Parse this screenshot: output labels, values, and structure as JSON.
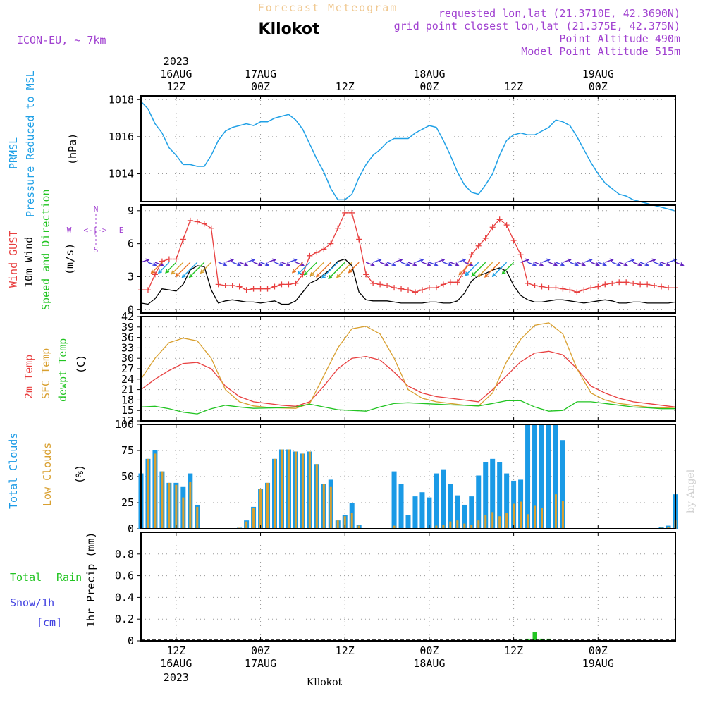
{
  "header": {
    "title": "Forecast Meteogram",
    "location": "Kllokot",
    "model": "ICON-EU, ~ 7km",
    "requested": "requested lon,lat (21.3710E, 42.3690N)",
    "gridpoint": "grid point closest lon,lat (21.375E, 42.375N)",
    "point_alt": "Point Altitude 490m",
    "model_alt": "Model Point Altitude 515m",
    "footer": "Kllokot",
    "watermark": "by Angel",
    "compass_n": "N",
    "compass_s": "S",
    "compass_w": "W",
    "compass_e": "E",
    "compass_arrow": "<-|->"
  },
  "time_axis": {
    "labels": [
      {
        "hour": 12,
        "time": "12Z",
        "date": "16AUG",
        "year": "2023"
      },
      {
        "hour": 24,
        "time": "00Z",
        "date": "17AUG"
      },
      {
        "hour": 36,
        "time": "12Z"
      },
      {
        "hour": 48,
        "time": "00Z",
        "date": "18AUG"
      },
      {
        "hour": 60,
        "time": "12Z"
      },
      {
        "hour": 72,
        "time": "00Z",
        "date": "19AUG"
      }
    ],
    "range_hours": [
      7,
      83
    ]
  },
  "colors": {
    "pressure": "#1fa0e6",
    "gust": "#e84040",
    "wind": "#000000",
    "temp2m": "#e84040",
    "sfc": "#d9a030",
    "dewpt": "#22c422",
    "total_cloud": "#1a9ae6",
    "low_cloud": "#d9a030",
    "rain": "#22c422",
    "snow": "#4040e0",
    "purple": "#a040d0"
  },
  "chart_data": [
    {
      "type": "line",
      "panel": "pressure",
      "labels": [
        "PRMSL",
        "Pressure Reduced to MSL",
        "(hPa)"
      ],
      "ylim": [
        1012.5,
        1018.2
      ],
      "yticks": [
        1014,
        1016,
        1018
      ],
      "series": [
        {
          "name": "PRMSL",
          "x": [
            7,
            8,
            9,
            10,
            11,
            12,
            13,
            14,
            15,
            16,
            17,
            18,
            19,
            20,
            21,
            22,
            23,
            24,
            25,
            26,
            27,
            28,
            29,
            30,
            31,
            32,
            33,
            34,
            35,
            36,
            37,
            38,
            39,
            40,
            41,
            42,
            43,
            44,
            45,
            46,
            47,
            48,
            49,
            50,
            51,
            52,
            53,
            54,
            55,
            56,
            57,
            58,
            59,
            60,
            61,
            62,
            63,
            64,
            65,
            66,
            67,
            68,
            69,
            70,
            71,
            72,
            73,
            74,
            75,
            76,
            77,
            78,
            79,
            80,
            81,
            82,
            83
          ],
          "values": [
            1017.9,
            1017.5,
            1016.7,
            1016.2,
            1015.4,
            1015.0,
            1014.5,
            1014.5,
            1014.4,
            1014.4,
            1015.0,
            1015.8,
            1016.3,
            1016.5,
            1016.6,
            1016.7,
            1016.6,
            1016.8,
            1016.8,
            1017.0,
            1017.1,
            1017.2,
            1016.9,
            1016.4,
            1015.6,
            1014.8,
            1014.1,
            1013.2,
            1012.6,
            1012.6,
            1012.9,
            1013.8,
            1014.5,
            1015.0,
            1015.3,
            1015.7,
            1015.9,
            1015.9,
            1015.9,
            1016.2,
            1016.4,
            1016.6,
            1016.5,
            1015.8,
            1015.0,
            1014.1,
            1013.4,
            1013.0,
            1012.9,
            1013.4,
            1014.0,
            1015.0,
            1015.8,
            1016.1,
            1016.2,
            1016.1,
            1016.1,
            1016.3,
            1016.5,
            1016.9,
            1016.8,
            1016.6,
            1016.0,
            1015.3,
            1014.6,
            1014.0,
            1013.5,
            1013.2,
            1012.9,
            1012.8,
            1012.6,
            1012.5,
            1012.4,
            1012.3,
            1012.2,
            1012.1,
            1012.0
          ]
        }
      ]
    },
    {
      "type": "line",
      "panel": "wind",
      "labels": [
        "Wind GUST",
        "10m Wind",
        "Speed and Direction",
        "(m/s)"
      ],
      "ylim": [
        -0.3,
        9.5
      ],
      "yticks": [
        0,
        3,
        6,
        9
      ],
      "x": [
        7,
        8,
        9,
        10,
        11,
        12,
        13,
        14,
        15,
        16,
        17,
        18,
        19,
        20,
        21,
        22,
        23,
        24,
        25,
        26,
        27,
        28,
        29,
        30,
        31,
        32,
        33,
        34,
        35,
        36,
        37,
        38,
        39,
        40,
        41,
        42,
        43,
        44,
        45,
        46,
        47,
        48,
        49,
        50,
        51,
        52,
        53,
        54,
        55,
        56,
        57,
        58,
        59,
        60,
        61,
        62,
        63,
        64,
        65,
        66,
        67,
        68,
        69,
        70,
        71,
        72,
        73,
        74,
        75,
        76,
        77,
        78,
        79,
        80,
        81,
        82,
        83
      ],
      "series": [
        {
          "name": "Wind GUST",
          "values": [
            1.8,
            1.8,
            3.2,
            4.4,
            4.6,
            4.6,
            6.4,
            8.1,
            8.0,
            7.8,
            7.4,
            2.3,
            2.2,
            2.2,
            2.1,
            1.8,
            1.9,
            1.9,
            1.9,
            2.1,
            2.3,
            2.3,
            2.4,
            3.2,
            4.9,
            5.2,
            5.5,
            6.0,
            7.4,
            8.8,
            8.8,
            6.4,
            3.2,
            2.4,
            2.3,
            2.2,
            2.0,
            1.9,
            1.8,
            1.6,
            1.8,
            2.0,
            2.0,
            2.3,
            2.5,
            2.5,
            3.5,
            5.0,
            5.8,
            6.5,
            7.5,
            8.2,
            7.7,
            6.3,
            5.0,
            2.4,
            2.2,
            2.1,
            2.0,
            2.0,
            1.9,
            1.8,
            1.6,
            1.8,
            2.0,
            2.1,
            2.3,
            2.4,
            2.5,
            2.5,
            2.4,
            2.3,
            2.3,
            2.2,
            2.1,
            2.0,
            2.0
          ]
        },
        {
          "name": "10m Wind",
          "values": [
            0.6,
            0.5,
            1.0,
            1.9,
            1.8,
            1.7,
            2.3,
            3.6,
            4.0,
            3.9,
            1.8,
            0.6,
            0.8,
            0.9,
            0.8,
            0.7,
            0.7,
            0.6,
            0.7,
            0.8,
            0.5,
            0.5,
            0.8,
            1.6,
            2.4,
            2.7,
            3.2,
            3.7,
            4.4,
            4.6,
            4.0,
            1.6,
            0.9,
            0.8,
            0.8,
            0.8,
            0.7,
            0.6,
            0.6,
            0.6,
            0.6,
            0.7,
            0.7,
            0.6,
            0.6,
            0.8,
            1.5,
            2.6,
            3.1,
            3.3,
            3.6,
            3.8,
            3.5,
            2.2,
            1.3,
            0.9,
            0.7,
            0.7,
            0.8,
            0.9,
            0.9,
            0.8,
            0.7,
            0.6,
            0.7,
            0.8,
            0.9,
            0.8,
            0.6,
            0.6,
            0.7,
            0.7,
            0.6,
            0.6,
            0.6,
            0.6,
            0.7
          ]
        }
      ]
    },
    {
      "type": "line",
      "panel": "temperature",
      "labels": [
        "2m Temp",
        "SFC Temp",
        "dewpt Temp",
        "(C)"
      ],
      "ylim": [
        12,
        42
      ],
      "yticks": [
        12,
        15,
        18,
        21,
        24,
        27,
        30,
        33,
        36,
        39,
        42
      ],
      "x": [
        7,
        9,
        11,
        13,
        15,
        17,
        19,
        21,
        23,
        25,
        27,
        29,
        31,
        33,
        35,
        37,
        39,
        41,
        43,
        45,
        47,
        49,
        51,
        53,
        55,
        57,
        59,
        61,
        63,
        65,
        67,
        69,
        71,
        73,
        75,
        77,
        79,
        81,
        83
      ],
      "series": [
        {
          "name": "2m Temp",
          "values": [
            21.0,
            24.0,
            26.5,
            28.5,
            28.8,
            27.0,
            22.0,
            19.0,
            17.5,
            17.0,
            16.5,
            16.2,
            17.5,
            22.0,
            27.0,
            30.0,
            30.5,
            29.5,
            26.0,
            22.0,
            20.0,
            19.0,
            18.5,
            18.0,
            17.5,
            21.0,
            25.0,
            29.0,
            31.5,
            32.0,
            31.0,
            27.0,
            22.0,
            20.0,
            18.5,
            17.5,
            17.0,
            16.5,
            16.0
          ]
        },
        {
          "name": "SFC Temp",
          "values": [
            24.0,
            30.0,
            34.5,
            35.8,
            35.0,
            30.0,
            21.0,
            17.5,
            16.3,
            15.9,
            15.7,
            15.6,
            17.0,
            25.0,
            33.0,
            38.5,
            39.2,
            37.0,
            30.0,
            21.0,
            18.5,
            17.5,
            17.0,
            16.5,
            16.3,
            20.0,
            29.0,
            35.5,
            39.5,
            40.2,
            37.0,
            27.0,
            20.0,
            18.0,
            17.0,
            16.5,
            16.0,
            15.8,
            15.6
          ]
        },
        {
          "name": "dewpt Temp",
          "values": [
            16.0,
            16.2,
            15.5,
            14.5,
            14.0,
            15.5,
            16.5,
            16.0,
            15.6,
            15.7,
            15.8,
            16.0,
            16.8,
            16.0,
            15.2,
            15.0,
            14.8,
            16.0,
            17.0,
            17.2,
            17.0,
            16.8,
            16.6,
            16.5,
            16.3,
            17.0,
            17.8,
            17.8,
            16.0,
            14.8,
            15.0,
            17.5,
            17.5,
            17.0,
            16.5,
            16.0,
            15.8,
            15.5,
            15.5
          ]
        }
      ]
    },
    {
      "type": "bar",
      "panel": "clouds",
      "labels": [
        "Total Clouds",
        "Low Clouds",
        "(%)"
      ],
      "ylim": [
        0,
        100
      ],
      "yticks": [
        0,
        25,
        50,
        75,
        100
      ],
      "x": [
        7,
        8,
        9,
        10,
        11,
        12,
        13,
        14,
        15,
        16,
        17,
        18,
        19,
        20,
        21,
        22,
        23,
        24,
        25,
        26,
        27,
        28,
        29,
        30,
        31,
        32,
        33,
        34,
        35,
        36,
        37,
        38,
        39,
        40,
        41,
        42,
        43,
        44,
        45,
        46,
        47,
        48,
        49,
        50,
        51,
        52,
        53,
        54,
        55,
        56,
        57,
        58,
        59,
        60,
        61,
        62,
        63,
        64,
        65,
        66,
        67,
        68,
        69,
        70,
        71,
        72,
        73,
        74,
        75,
        76,
        77,
        78,
        79,
        80,
        81,
        82,
        83
      ],
      "series": [
        {
          "name": "Total Clouds",
          "values": [
            53,
            67,
            75,
            55,
            44,
            44,
            40,
            53,
            23,
            0,
            0,
            0,
            0,
            0,
            1,
            8,
            21,
            38,
            44,
            67,
            76,
            76,
            74,
            72,
            74,
            62,
            43,
            47,
            8,
            13,
            25,
            4,
            0,
            0,
            0,
            0,
            55,
            43,
            13,
            31,
            35,
            30,
            53,
            57,
            43,
            32,
            23,
            31,
            51,
            64,
            67,
            64,
            53,
            46,
            47,
            100,
            100,
            100,
            100,
            100,
            85,
            0,
            0,
            0,
            0,
            0,
            0,
            0,
            0,
            0,
            0,
            0,
            0,
            0,
            2,
            3,
            33
          ]
        },
        {
          "name": "Low Clouds",
          "values": [
            53,
            67,
            72,
            55,
            44,
            42,
            30,
            45,
            21,
            0,
            0,
            0,
            0,
            0,
            1,
            7,
            20,
            38,
            44,
            67,
            76,
            76,
            74,
            72,
            74,
            62,
            43,
            40,
            8,
            12,
            15,
            3,
            0,
            0,
            0,
            0,
            3,
            0,
            0,
            0,
            0,
            0,
            3,
            4,
            7,
            8,
            5,
            4,
            8,
            13,
            16,
            12,
            15,
            24,
            26,
            14,
            22,
            20,
            0,
            33,
            27,
            0,
            0,
            0,
            0,
            0,
            0,
            0,
            0,
            0,
            0,
            0,
            0,
            0,
            1,
            2,
            8
          ]
        }
      ]
    },
    {
      "type": "bar",
      "panel": "precip",
      "labels": [
        "Total",
        "Rain",
        "Snow/1h",
        "[cm]",
        "1hr Precip (mm)"
      ],
      "ylim": [
        0,
        1.0
      ],
      "yticks": [
        0,
        0.2,
        0.4,
        0.6,
        0.8
      ],
      "series": [
        {
          "name": "Rain",
          "x": [
            61,
            62,
            63,
            64,
            65
          ],
          "values": [
            0.01,
            0.02,
            0.08,
            0.02,
            0.02
          ]
        }
      ]
    }
  ]
}
